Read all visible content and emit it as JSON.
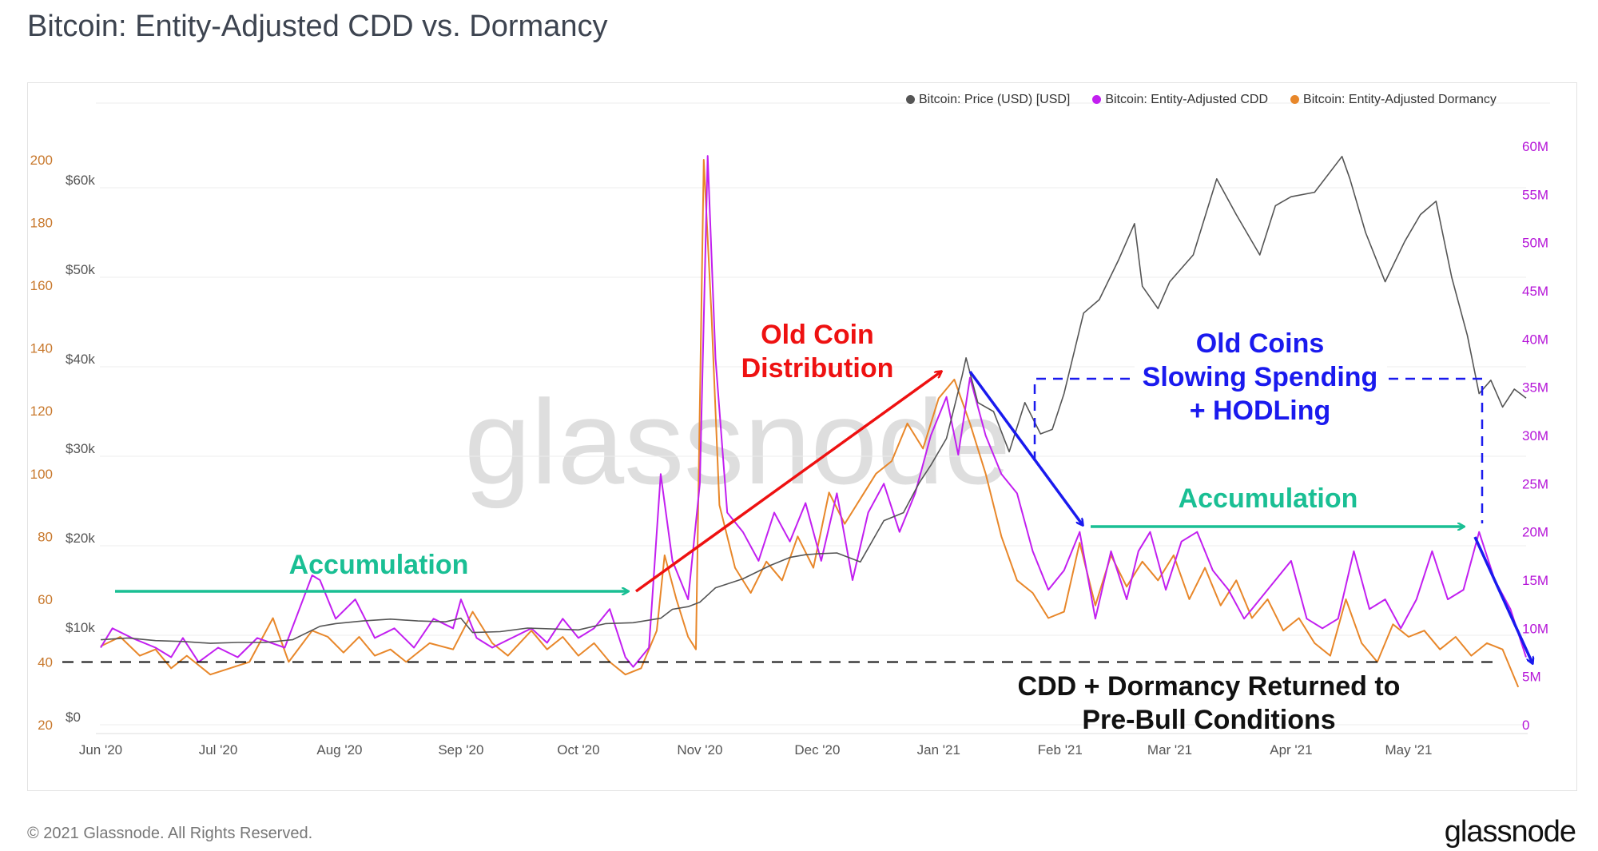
{
  "title": "Bitcoin: Entity-Adjusted CDD vs. Dormancy",
  "footer": "© 2021 Glassnode. All Rights Reserved.",
  "logo": "glassnode",
  "watermark": "glassnode",
  "colors": {
    "price": "#555555",
    "cdd": "#c21ff0",
    "dormancy": "#e8872a",
    "accumulation": "#1abf94",
    "distribution": "#ee1111",
    "hodl": "#1a1aee",
    "baseline": "#111111"
  },
  "chart_data": {
    "type": "line",
    "title": "Bitcoin: Entity-Adjusted CDD vs. Dormancy",
    "x_unit": "days since Jun 1 2020",
    "x_ticks": [
      {
        "label": "Jun '20",
        "day": 0
      },
      {
        "label": "Jul '20",
        "day": 30
      },
      {
        "label": "Aug '20",
        "day": 61
      },
      {
        "label": "Sep '20",
        "day": 92
      },
      {
        "label": "Oct '20",
        "day": 122
      },
      {
        "label": "Nov '20",
        "day": 153
      },
      {
        "label": "Dec '20",
        "day": 183
      },
      {
        "label": "Jan '21",
        "day": 214
      },
      {
        "label": "Feb '21",
        "day": 245
      },
      {
        "label": "Mar '21",
        "day": 273
      },
      {
        "label": "Apr '21",
        "day": 304
      },
      {
        "label": "May '21",
        "day": 334
      }
    ],
    "xlim": [
      0,
      364
    ],
    "axes": {
      "dormancy": {
        "ylim": [
          20,
          200
        ],
        "ticks": [
          "20",
          "40",
          "60",
          "80",
          "100",
          "120",
          "140",
          "160",
          "180",
          "200"
        ],
        "tick_values": [
          20,
          40,
          60,
          80,
          100,
          120,
          140,
          160,
          180,
          200
        ]
      },
      "price": {
        "ylim": [
          0,
          60000
        ],
        "ticks": [
          "$0",
          "$10k",
          "$20k",
          "$30k",
          "$40k",
          "$50k",
          "$60k"
        ],
        "tick_values": [
          0,
          10000,
          20000,
          30000,
          40000,
          50000,
          60000
        ]
      },
      "cdd": {
        "ylim": [
          0,
          60
        ],
        "ticks": [
          "0",
          "5M",
          "10M",
          "15M",
          "20M",
          "25M",
          "30M",
          "35M",
          "40M",
          "45M",
          "50M",
          "55M",
          "60M"
        ],
        "tick_values": [
          0,
          5,
          10,
          15,
          20,
          25,
          30,
          35,
          40,
          45,
          50,
          55,
          60
        ]
      }
    },
    "legend": {
      "position": "top-right",
      "entries": [
        "Bitcoin: Price (USD) [USD]",
        "Bitcoin: Entity-Adjusted CDD",
        "Bitcoin: Entity-Adjusted Dormancy"
      ]
    },
    "series": [
      {
        "name": "Bitcoin: Price (USD) [USD]",
        "axis": "price",
        "unit": "k USD",
        "points": [
          [
            0,
            9.5
          ],
          [
            7,
            9.7
          ],
          [
            14,
            9.4
          ],
          [
            21,
            9.3
          ],
          [
            28,
            9.1
          ],
          [
            35,
            9.2
          ],
          [
            42,
            9.2
          ],
          [
            49,
            9.5
          ],
          [
            56,
            11.0
          ],
          [
            60,
            11.3
          ],
          [
            67,
            11.6
          ],
          [
            74,
            11.8
          ],
          [
            81,
            11.6
          ],
          [
            88,
            11.5
          ],
          [
            92,
            11.9
          ],
          [
            95,
            10.3
          ],
          [
            102,
            10.4
          ],
          [
            109,
            10.8
          ],
          [
            116,
            10.7
          ],
          [
            122,
            10.6
          ],
          [
            129,
            11.3
          ],
          [
            136,
            11.4
          ],
          [
            143,
            11.9
          ],
          [
            146,
            12.9
          ],
          [
            150,
            13.2
          ],
          [
            153,
            13.7
          ],
          [
            157,
            15.3
          ],
          [
            164,
            16.3
          ],
          [
            171,
            17.8
          ],
          [
            176,
            18.7
          ],
          [
            180,
            19.0
          ],
          [
            183,
            19.1
          ],
          [
            188,
            19.2
          ],
          [
            194,
            18.2
          ],
          [
            200,
            22.8
          ],
          [
            205,
            23.7
          ],
          [
            209,
            27.0
          ],
          [
            212,
            29.0
          ],
          [
            216,
            32.0
          ],
          [
            220,
            39.0
          ],
          [
            221,
            41.0
          ],
          [
            224,
            36.0
          ],
          [
            228,
            35.0
          ],
          [
            232,
            30.5
          ],
          [
            236,
            36.0
          ],
          [
            240,
            32.5
          ],
          [
            243,
            33.0
          ],
          [
            246,
            37.0
          ],
          [
            251,
            46.0
          ],
          [
            255,
            47.5
          ],
          [
            260,
            52.0
          ],
          [
            264,
            56.0
          ],
          [
            266,
            49.0
          ],
          [
            270,
            46.5
          ],
          [
            273,
            49.5
          ],
          [
            279,
            52.5
          ],
          [
            285,
            61.0
          ],
          [
            290,
            57.0
          ],
          [
            296,
            52.5
          ],
          [
            300,
            58.0
          ],
          [
            304,
            59.0
          ],
          [
            310,
            59.5
          ],
          [
            317,
            63.5
          ],
          [
            319,
            61.0
          ],
          [
            323,
            55.0
          ],
          [
            328,
            49.5
          ],
          [
            333,
            54.0
          ],
          [
            337,
            57.0
          ],
          [
            341,
            58.5
          ],
          [
            345,
            50.0
          ],
          [
            349,
            43.5
          ],
          [
            352,
            37.0
          ],
          [
            355,
            38.5
          ],
          [
            358,
            35.5
          ],
          [
            361,
            37.5
          ],
          [
            364,
            36.5
          ]
        ]
      },
      {
        "name": "Bitcoin: Entity-Adjusted CDD",
        "axis": "cdd",
        "unit": "M",
        "points": [
          [
            0,
            8
          ],
          [
            3,
            10
          ],
          [
            8,
            9
          ],
          [
            14,
            8
          ],
          [
            18,
            7
          ],
          [
            21,
            9
          ],
          [
            25,
            6.5
          ],
          [
            30,
            8
          ],
          [
            35,
            7
          ],
          [
            40,
            9
          ],
          [
            47,
            8
          ],
          [
            54,
            15.5
          ],
          [
            56,
            15
          ],
          [
            60,
            11
          ],
          [
            65,
            13
          ],
          [
            70,
            9
          ],
          [
            75,
            10
          ],
          [
            80,
            8
          ],
          [
            85,
            11
          ],
          [
            90,
            10
          ],
          [
            92,
            13
          ],
          [
            96,
            9
          ],
          [
            100,
            8
          ],
          [
            105,
            9
          ],
          [
            110,
            10
          ],
          [
            114,
            8.5
          ],
          [
            118,
            11
          ],
          [
            122,
            9
          ],
          [
            126,
            10
          ],
          [
            130,
            12
          ],
          [
            134,
            7
          ],
          [
            136,
            6
          ],
          [
            140,
            8
          ],
          [
            143,
            26
          ],
          [
            146,
            17
          ],
          [
            150,
            13
          ],
          [
            153,
            25
          ],
          [
            155,
            59
          ],
          [
            157,
            38
          ],
          [
            160,
            22
          ],
          [
            164,
            20
          ],
          [
            168,
            17
          ],
          [
            172,
            22
          ],
          [
            176,
            19
          ],
          [
            180,
            23
          ],
          [
            184,
            17
          ],
          [
            188,
            24
          ],
          [
            192,
            15
          ],
          [
            196,
            22
          ],
          [
            200,
            25
          ],
          [
            204,
            20
          ],
          [
            208,
            24
          ],
          [
            212,
            30
          ],
          [
            216,
            34
          ],
          [
            219,
            28
          ],
          [
            222,
            36
          ],
          [
            226,
            30
          ],
          [
            230,
            26
          ],
          [
            234,
            24
          ],
          [
            238,
            18
          ],
          [
            242,
            14
          ],
          [
            246,
            16
          ],
          [
            250,
            20
          ],
          [
            254,
            11
          ],
          [
            258,
            18
          ],
          [
            262,
            13
          ],
          [
            265,
            18
          ],
          [
            268,
            20
          ],
          [
            272,
            14
          ],
          [
            276,
            19
          ],
          [
            280,
            20
          ],
          [
            284,
            16
          ],
          [
            288,
            14
          ],
          [
            292,
            11
          ],
          [
            296,
            13
          ],
          [
            300,
            15
          ],
          [
            304,
            17
          ],
          [
            308,
            11
          ],
          [
            312,
            10
          ],
          [
            316,
            11
          ],
          [
            320,
            18
          ],
          [
            324,
            12
          ],
          [
            328,
            13
          ],
          [
            332,
            10
          ],
          [
            336,
            13
          ],
          [
            340,
            18
          ],
          [
            344,
            13
          ],
          [
            348,
            14
          ],
          [
            352,
            20
          ],
          [
            356,
            15
          ],
          [
            360,
            12
          ],
          [
            364,
            7
          ]
        ]
      },
      {
        "name": "Bitcoin: Entity-Adjusted Dormancy",
        "axis": "dormancy",
        "unit": "days",
        "points": [
          [
            0,
            45
          ],
          [
            5,
            48
          ],
          [
            10,
            42
          ],
          [
            14,
            44
          ],
          [
            18,
            38
          ],
          [
            22,
            42
          ],
          [
            28,
            36
          ],
          [
            33,
            38
          ],
          [
            38,
            40
          ],
          [
            44,
            54
          ],
          [
            48,
            40
          ],
          [
            54,
            50
          ],
          [
            58,
            48
          ],
          [
            62,
            43
          ],
          [
            66,
            48
          ],
          [
            70,
            42
          ],
          [
            74,
            44
          ],
          [
            78,
            40
          ],
          [
            84,
            46
          ],
          [
            90,
            44
          ],
          [
            95,
            56
          ],
          [
            100,
            46
          ],
          [
            104,
            42
          ],
          [
            110,
            50
          ],
          [
            114,
            44
          ],
          [
            118,
            48
          ],
          [
            122,
            42
          ],
          [
            126,
            46
          ],
          [
            130,
            40
          ],
          [
            134,
            36
          ],
          [
            138,
            38
          ],
          [
            142,
            50
          ],
          [
            144,
            74
          ],
          [
            147,
            60
          ],
          [
            150,
            48
          ],
          [
            152,
            44
          ],
          [
            154,
            200
          ],
          [
            156,
            150
          ],
          [
            158,
            90
          ],
          [
            162,
            70
          ],
          [
            166,
            62
          ],
          [
            170,
            72
          ],
          [
            174,
            66
          ],
          [
            178,
            80
          ],
          [
            182,
            70
          ],
          [
            186,
            94
          ],
          [
            190,
            84
          ],
          [
            194,
            92
          ],
          [
            198,
            100
          ],
          [
            202,
            104
          ],
          [
            206,
            116
          ],
          [
            210,
            108
          ],
          [
            214,
            124
          ],
          [
            218,
            130
          ],
          [
            222,
            116
          ],
          [
            226,
            100
          ],
          [
            230,
            80
          ],
          [
            234,
            66
          ],
          [
            238,
            62
          ],
          [
            242,
            54
          ],
          [
            246,
            56
          ],
          [
            250,
            78
          ],
          [
            254,
            58
          ],
          [
            258,
            74
          ],
          [
            262,
            64
          ],
          [
            266,
            72
          ],
          [
            270,
            66
          ],
          [
            274,
            74
          ],
          [
            278,
            60
          ],
          [
            282,
            70
          ],
          [
            286,
            58
          ],
          [
            290,
            66
          ],
          [
            294,
            54
          ],
          [
            298,
            60
          ],
          [
            302,
            50
          ],
          [
            306,
            54
          ],
          [
            310,
            46
          ],
          [
            314,
            42
          ],
          [
            318,
            60
          ],
          [
            322,
            46
          ],
          [
            326,
            40
          ],
          [
            330,
            52
          ],
          [
            334,
            48
          ],
          [
            338,
            50
          ],
          [
            342,
            44
          ],
          [
            346,
            48
          ],
          [
            350,
            42
          ],
          [
            354,
            46
          ],
          [
            358,
            44
          ],
          [
            362,
            32
          ]
        ]
      }
    ],
    "baseline": {
      "axis": "dormancy",
      "value": 40
    },
    "annotations": {
      "accumulation_1": "Accumulation",
      "distribution": [
        "Old Coin",
        "Distribution"
      ],
      "hodl": [
        "Old Coins",
        "Slowing Spending",
        "+ HODLing"
      ],
      "accumulation_2": "Accumulation",
      "returned": [
        "CDD + Dormancy Returned to",
        "Pre-Bull Conditions"
      ]
    }
  }
}
